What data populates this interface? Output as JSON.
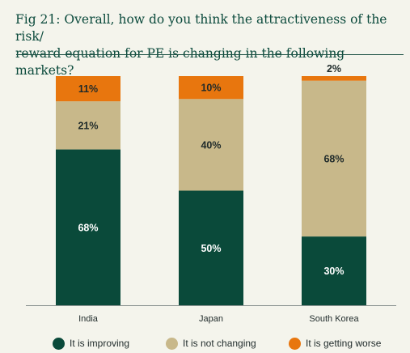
{
  "title": "Fig 21: Overall, how do you think the attractiveness of the risk/\nreward equation for PE is changing in the following markets?",
  "colors": {
    "improving": "#0a4a3a",
    "not_changing": "#c8b88a",
    "getting_worse": "#e8760e",
    "axis": "#8a9390",
    "text": "#1f2a2a",
    "label_dark": "#1f2a2a",
    "label_light": "#ffffff"
  },
  "legend": [
    {
      "label": "It is improving",
      "color": "#0a4a3a"
    },
    {
      "label": "It is not changing",
      "color": "#c8b88a"
    },
    {
      "label": "It is getting worse",
      "color": "#e8760e"
    }
  ],
  "chart_data": {
    "type": "bar",
    "stacked": true,
    "categories": [
      "India",
      "Japan",
      "South Korea"
    ],
    "series": [
      {
        "name": "It is improving",
        "values": [
          68,
          50,
          30
        ],
        "labels": [
          "68%",
          "50%",
          "30%"
        ]
      },
      {
        "name": "It is not changing",
        "values": [
          21,
          40,
          68
        ],
        "labels": [
          "21%",
          "40%",
          "68%"
        ]
      },
      {
        "name": "It is getting worse",
        "values": [
          11,
          10,
          2
        ],
        "labels": [
          "11%",
          "10%",
          "2%"
        ]
      }
    ],
    "ylim": [
      0,
      100
    ],
    "grid": false,
    "legend_position": "bottom"
  }
}
